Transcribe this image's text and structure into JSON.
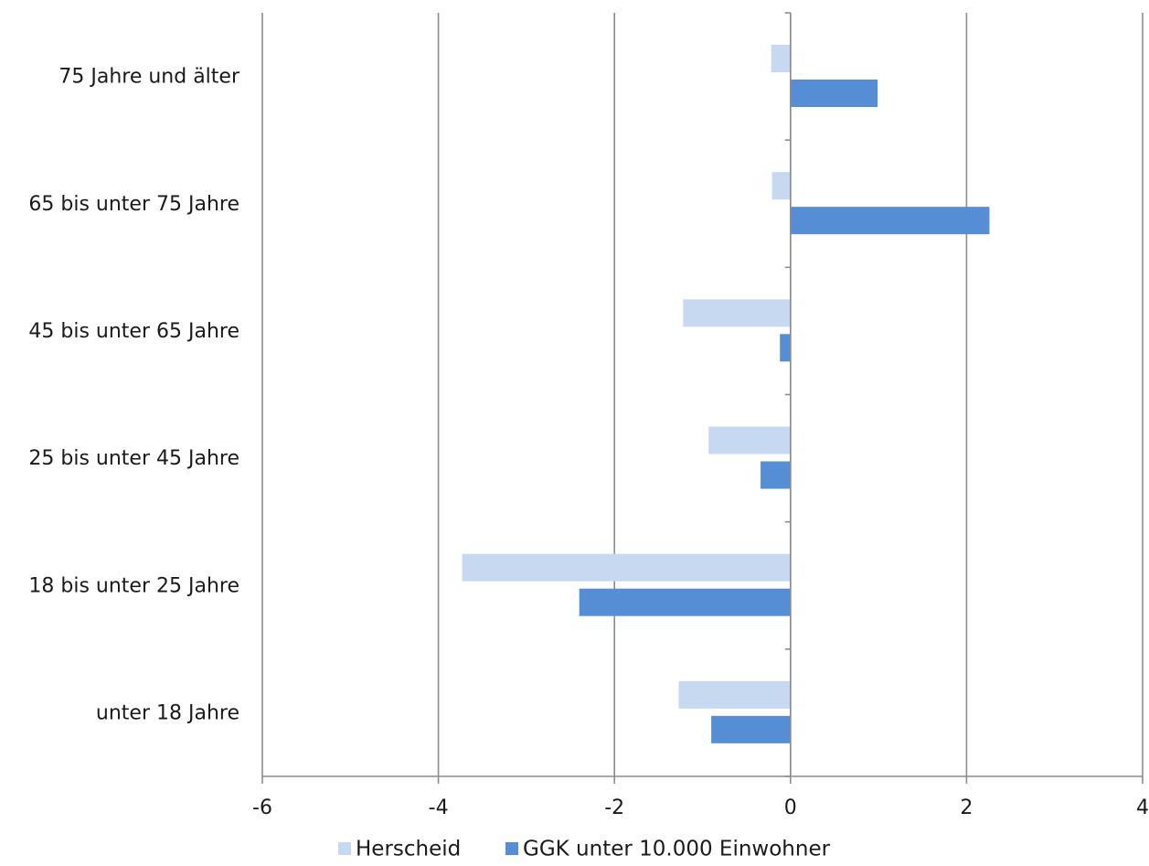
{
  "chart_data": {
    "type": "bar",
    "orientation": "horizontal",
    "categories": [
      "75 Jahre und älter",
      "65 bis unter 75 Jahre",
      "45 bis unter 65 Jahre",
      "25 bis unter 45 Jahre",
      "18 bis unter 25 Jahre",
      "unter 18 Jahre"
    ],
    "series": [
      {
        "name": "Herscheid",
        "color": "#c6d9f1",
        "values": [
          -0.22,
          -0.21,
          -1.22,
          -0.93,
          -3.73,
          -1.27
        ]
      },
      {
        "name": "GGK unter 10.000 Einwohner",
        "color": "#558ed5",
        "values": [
          0.99,
          2.26,
          -0.12,
          -0.34,
          -2.4,
          -0.9
        ]
      }
    ],
    "xlim": [
      -6,
      4
    ],
    "xticks": [
      "-6",
      "-4",
      "-2",
      "0",
      "2",
      "4"
    ],
    "grid": "vertical",
    "legend": "bottom",
    "title": "",
    "xlabel": "",
    "ylabel": ""
  }
}
